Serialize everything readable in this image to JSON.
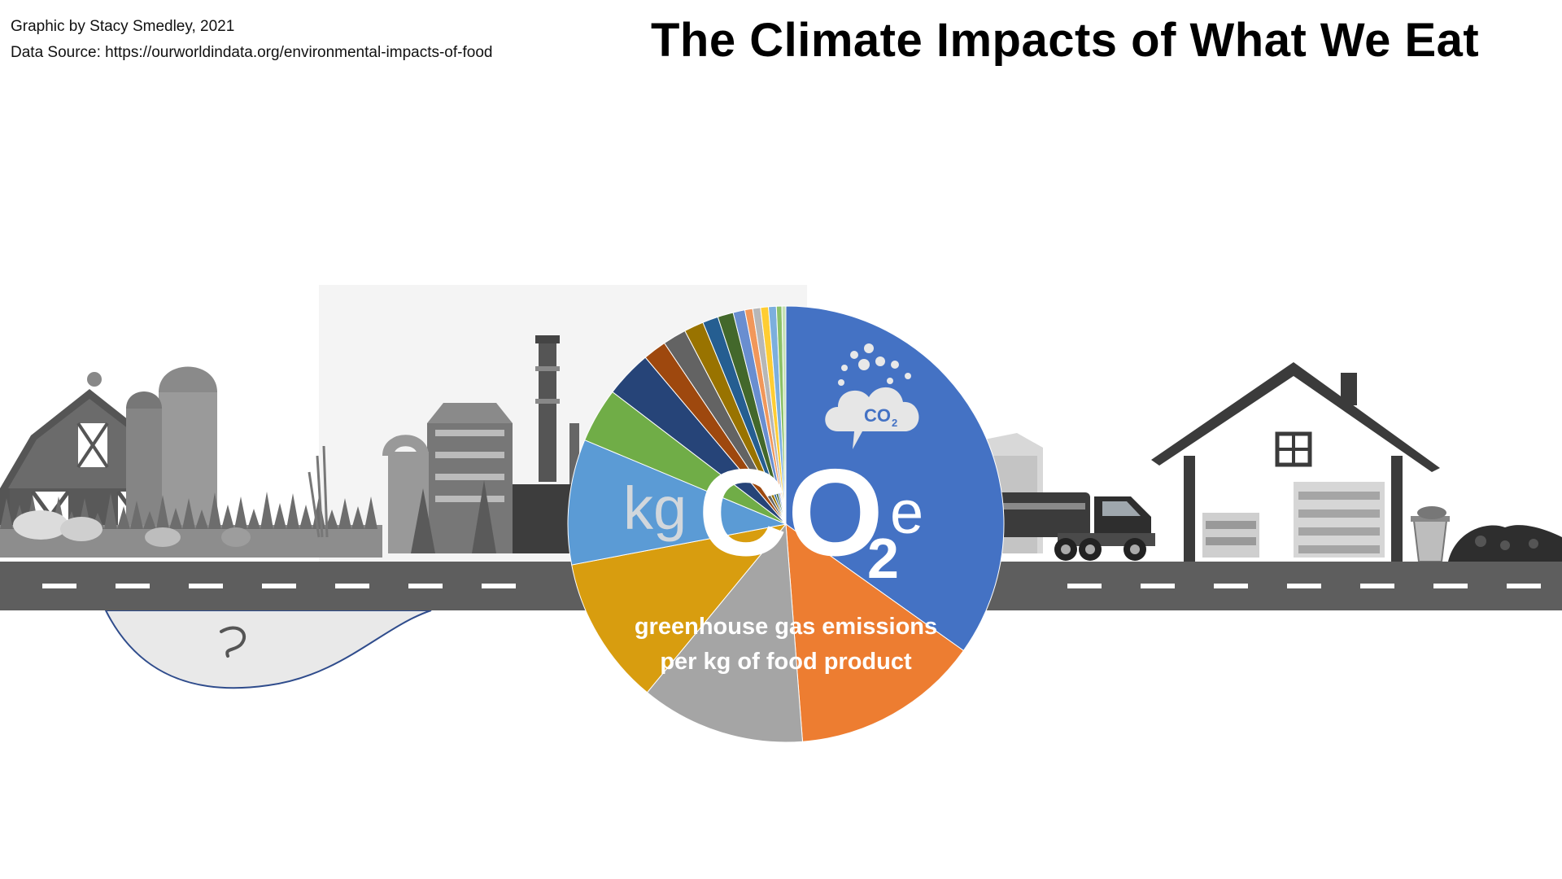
{
  "credits": {
    "author": "Graphic by Stacy Smedley, 2021",
    "source": "Data Source: https://ourworldindata.org/environmental-impacts-of-food"
  },
  "title": "The Climate Impacts of What We Eat",
  "center": {
    "unit_kg": "kg",
    "unit_co": "CO",
    "unit_sub": "2",
    "unit_e": "e",
    "caption_line1": "greenhouse gas emissions",
    "caption_line2": "per kg of food product"
  },
  "icons": {
    "cloud_text": "CO",
    "cloud_sub": "2"
  },
  "chart_data": {
    "type": "pie",
    "title": "",
    "start_angle_deg": 0,
    "direction": "clockwise",
    "values": [
      60,
      24,
      21,
      19,
      16,
      7,
      6,
      3,
      3,
      2.5,
      2,
      2,
      1.5,
      1,
      1,
      1,
      1,
      0.7,
      0.5
    ],
    "colors": [
      "#4472c4",
      "#ed7d31",
      "#a5a5a5",
      "#d89d0f",
      "#5b9bd5",
      "#70ad47",
      "#264478",
      "#9e480e",
      "#636363",
      "#997300",
      "#255e91",
      "#43682b",
      "#698ed0",
      "#f1975a",
      "#b7b7b7",
      "#ffcd33",
      "#7cafdd",
      "#8cc168",
      "#c5e0b4"
    ]
  },
  "colors": {
    "road": "#5e5e5e",
    "road_line": "#ffffff",
    "pond_outline": "#2f4c8c"
  }
}
